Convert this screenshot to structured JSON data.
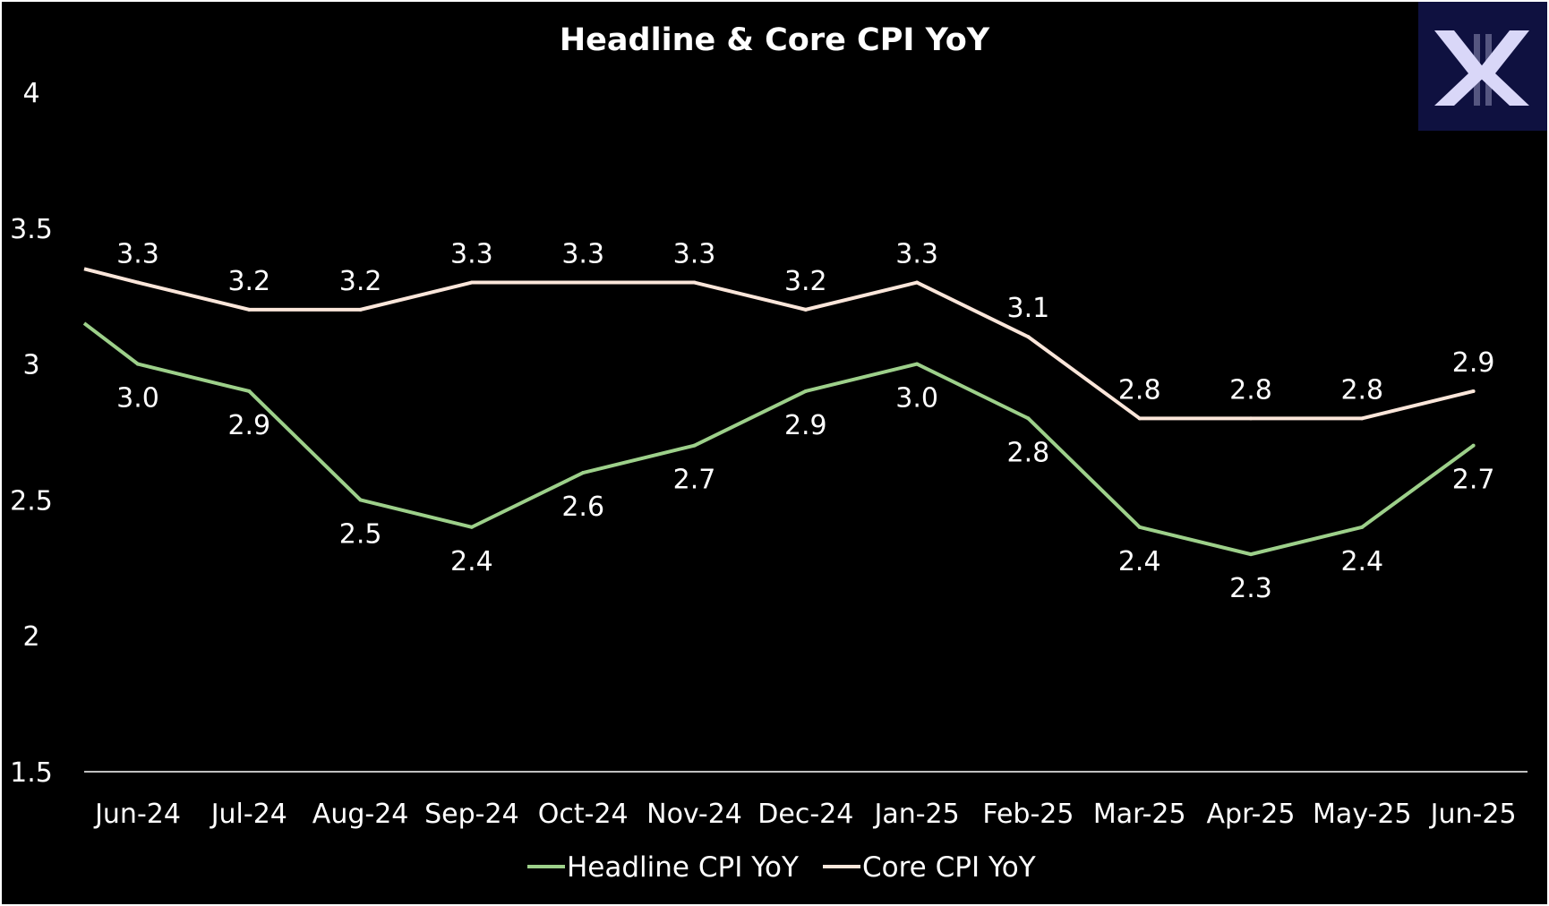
{
  "colors": {
    "background": "#000000",
    "headline": "#9dd08a",
    "core": "#fbe6da",
    "axis": "#ffffff",
    "text": "#ffffff",
    "logo_bg": "#0f1140",
    "logo_mark": "#d9d7f8"
  },
  "logo": {
    "icon": "x-logo-icon"
  },
  "chart_data": {
    "type": "line",
    "title": "Headline & Core CPI YoY",
    "xlabel": "",
    "ylabel": "",
    "categories": [
      "Jun-24",
      "Jul-24",
      "Aug-24",
      "Sep-24",
      "Oct-24",
      "Nov-24",
      "Dec-24",
      "Jan-25",
      "Feb-25",
      "Mar-25",
      "Apr-25",
      "May-25",
      "Jun-25"
    ],
    "ylim": [
      1.5,
      4
    ],
    "yticks": [
      "1.5",
      "2",
      "2.5",
      "3",
      "3.5",
      "4"
    ],
    "grid": false,
    "legend": "bottom",
    "series": [
      {
        "name": "Headline CPI YoY",
        "color": "#9dd08a",
        "values": [
          3.0,
          2.9,
          2.5,
          2.4,
          2.6,
          2.7,
          2.9,
          3.0,
          2.8,
          2.4,
          2.3,
          2.4,
          2.7
        ],
        "labels": [
          "3.0",
          "2.9",
          "2.5",
          "2.4",
          "2.6",
          "2.7",
          "2.9",
          "3.0",
          "2.8",
          "2.4",
          "2.3",
          "2.4",
          "2.7"
        ],
        "start_value": 3.15
      },
      {
        "name": "Core CPI YoY",
        "color": "#fbe6da",
        "values": [
          3.3,
          3.2,
          3.2,
          3.3,
          3.3,
          3.3,
          3.2,
          3.3,
          3.1,
          2.8,
          2.8,
          2.8,
          2.9
        ],
        "labels": [
          "3.3",
          "3.2",
          "3.2",
          "3.3",
          "3.3",
          "3.3",
          "3.2",
          "3.3",
          "3.1",
          "2.8",
          "2.8",
          "2.8",
          "2.9"
        ],
        "start_value": 3.35
      }
    ]
  }
}
